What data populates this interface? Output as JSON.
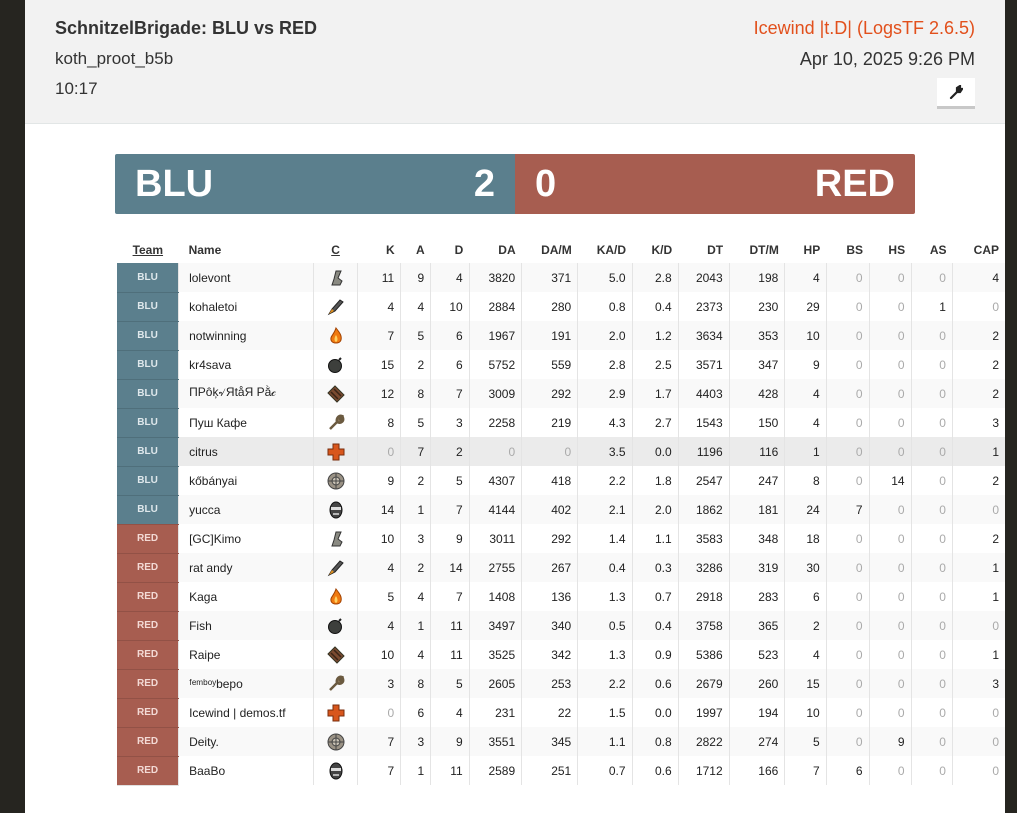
{
  "header": {
    "title": "SchnitzelBrigade: BLU vs RED",
    "map": "koth_proot_b5b",
    "duration": "10:17",
    "uploader": "Icewind |t.D| (LogsTF 2.6.5)",
    "date": "Apr 10, 2025 9:26 PM",
    "tool_icon": "wrench-icon"
  },
  "score": {
    "blu_label": "BLU",
    "blu_score": "2",
    "red_score": "0",
    "red_label": "RED"
  },
  "colors": {
    "blu": "#5b7f8d",
    "red": "#a75d50",
    "accent": "#e2501c"
  },
  "columns": [
    "Team",
    "Name",
    "C",
    "K",
    "A",
    "D",
    "DA",
    "DA/M",
    "KA/D",
    "K/D",
    "DT",
    "DT/M",
    "HP",
    "BS",
    "HS",
    "AS",
    "CAP"
  ],
  "rows": [
    {
      "team": "BLU",
      "name": "lolevont",
      "class": "scout",
      "stats": [
        "11",
        "9",
        "4",
        "3820",
        "371",
        "5.0",
        "2.8",
        "2043",
        "198",
        "4",
        "0",
        "0",
        "0",
        "4"
      ]
    },
    {
      "team": "BLU",
      "name": "kohaletoi",
      "class": "soldier",
      "stats": [
        "4",
        "4",
        "10",
        "2884",
        "280",
        "0.8",
        "0.4",
        "2373",
        "230",
        "29",
        "0",
        "0",
        "1",
        "0"
      ]
    },
    {
      "team": "BLU",
      "name": "notwinning",
      "class": "pyro",
      "stats": [
        "7",
        "5",
        "6",
        "1967",
        "191",
        "2.0",
        "1.2",
        "3634",
        "353",
        "10",
        "0",
        "0",
        "0",
        "2"
      ]
    },
    {
      "team": "BLU",
      "name": "kr4sava",
      "class": "demoman",
      "stats": [
        "15",
        "2",
        "6",
        "5752",
        "559",
        "2.8",
        "2.5",
        "3571",
        "347",
        "9",
        "0",
        "0",
        "0",
        "2"
      ]
    },
    {
      "team": "BLU",
      "name": "ΠPôķ৵ЯtåЯ Pằ𝒸",
      "class": "heavy",
      "stats": [
        "12",
        "8",
        "7",
        "3009",
        "292",
        "2.9",
        "1.7",
        "4403",
        "428",
        "4",
        "0",
        "0",
        "0",
        "2"
      ]
    },
    {
      "team": "BLU",
      "name": "Пуш Кафе",
      "class": "engineer",
      "stats": [
        "8",
        "5",
        "3",
        "2258",
        "219",
        "4.3",
        "2.7",
        "1543",
        "150",
        "4",
        "0",
        "0",
        "0",
        "3"
      ]
    },
    {
      "team": "BLU",
      "name": "citrus",
      "class": "medic",
      "highlight": true,
      "stats": [
        "0",
        "7",
        "2",
        "0",
        "0",
        "3.5",
        "0.0",
        "1196",
        "116",
        "1",
        "0",
        "0",
        "0",
        "1"
      ]
    },
    {
      "team": "BLU",
      "name": "kőbányai",
      "class": "sniper",
      "stats": [
        "9",
        "2",
        "5",
        "4307",
        "418",
        "2.2",
        "1.8",
        "2547",
        "247",
        "8",
        "0",
        "14",
        "0",
        "2"
      ]
    },
    {
      "team": "BLU",
      "name": "yucca",
      "class": "spy",
      "stats": [
        "14",
        "1",
        "7",
        "4144",
        "402",
        "2.1",
        "2.0",
        "1862",
        "181",
        "24",
        "7",
        "0",
        "0",
        "0"
      ]
    },
    {
      "team": "RED",
      "name": "[GC]Kimo",
      "class": "scout",
      "stats": [
        "10",
        "3",
        "9",
        "3011",
        "292",
        "1.4",
        "1.1",
        "3583",
        "348",
        "18",
        "0",
        "0",
        "0",
        "2"
      ]
    },
    {
      "team": "RED",
      "name": "rat andy",
      "class": "soldier",
      "stats": [
        "4",
        "2",
        "14",
        "2755",
        "267",
        "0.4",
        "0.3",
        "3286",
        "319",
        "30",
        "0",
        "0",
        "0",
        "1"
      ]
    },
    {
      "team": "RED",
      "name": "Kaga",
      "class": "pyro",
      "stats": [
        "5",
        "4",
        "7",
        "1408",
        "136",
        "1.3",
        "0.7",
        "2918",
        "283",
        "6",
        "0",
        "0",
        "0",
        "1"
      ]
    },
    {
      "team": "RED",
      "name": "Fish",
      "class": "demoman",
      "stats": [
        "4",
        "1",
        "11",
        "3497",
        "340",
        "0.5",
        "0.4",
        "3758",
        "365",
        "2",
        "0",
        "0",
        "0",
        "0"
      ]
    },
    {
      "team": "RED",
      "name": "Raipe",
      "class": "heavy",
      "stats": [
        "10",
        "4",
        "11",
        "3525",
        "342",
        "1.3",
        "0.9",
        "5386",
        "523",
        "4",
        "0",
        "0",
        "0",
        "1"
      ]
    },
    {
      "team": "RED",
      "name": "ᶠᵉᵐᵇᵒʸbepo",
      "class": "engineer",
      "stats": [
        "3",
        "8",
        "5",
        "2605",
        "253",
        "2.2",
        "0.6",
        "2679",
        "260",
        "15",
        "0",
        "0",
        "0",
        "3"
      ]
    },
    {
      "team": "RED",
      "name": "Icewind | demos.tf",
      "class": "medic",
      "stats": [
        "0",
        "6",
        "4",
        "231",
        "22",
        "1.5",
        "0.0",
        "1997",
        "194",
        "10",
        "0",
        "0",
        "0",
        "0"
      ]
    },
    {
      "team": "RED",
      "name": "Deity.",
      "class": "sniper",
      "stats": [
        "7",
        "3",
        "9",
        "3551",
        "345",
        "1.1",
        "0.8",
        "2822",
        "274",
        "5",
        "0",
        "9",
        "0",
        "0"
      ]
    },
    {
      "team": "RED",
      "name": "BaaBo",
      "class": "spy",
      "stats": [
        "7",
        "1",
        "11",
        "2589",
        "251",
        "0.7",
        "0.6",
        "1712",
        "166",
        "7",
        "6",
        "0",
        "0",
        "0"
      ]
    }
  ]
}
